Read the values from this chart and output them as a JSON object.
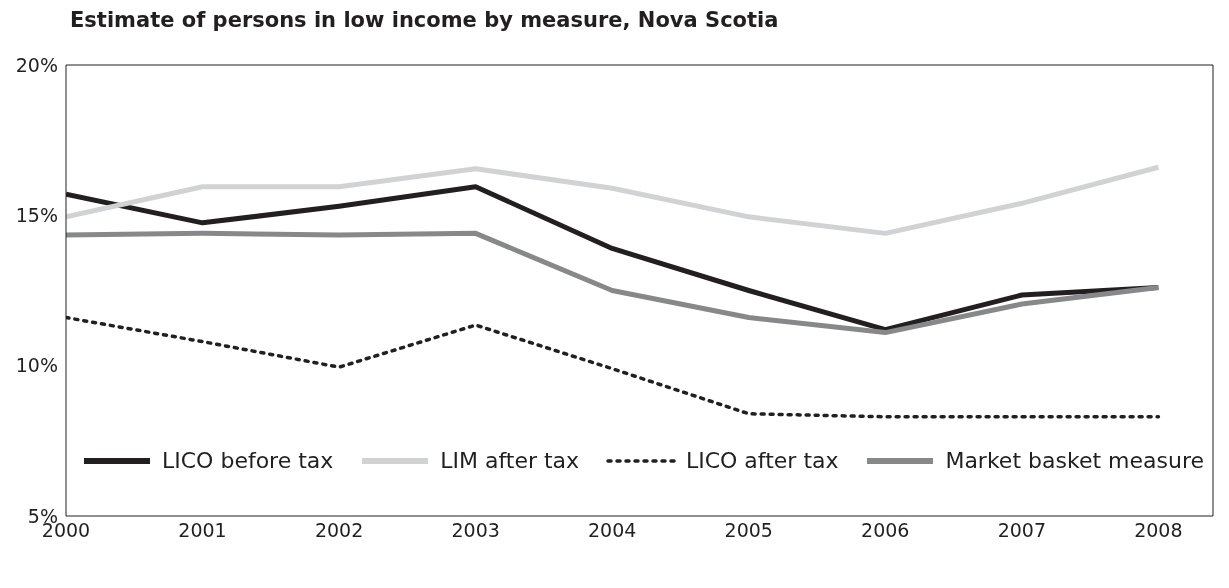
{
  "chart_data": {
    "type": "line",
    "title": "Estimate of persons in low income by measure, Nova Scotia",
    "x": [
      2000,
      2001,
      2002,
      2003,
      2004,
      2005,
      2006,
      2007,
      2008
    ],
    "xlim": [
      2000,
      2008.4
    ],
    "xticks": [
      2000,
      2001,
      2002,
      2003,
      2004,
      2005,
      2006,
      2007,
      2008
    ],
    "ylim": [
      5,
      20
    ],
    "yticks": [
      {
        "value": 5,
        "label": "5%"
      },
      {
        "value": 10,
        "label": "10%"
      },
      {
        "value": 15,
        "label": "15%"
      },
      {
        "value": 20,
        "label": "20%"
      }
    ],
    "grid": false,
    "legend": "bottom",
    "marker": "none",
    "series": [
      {
        "name": "LICO before tax",
        "color": "#231f20",
        "line_style": "solid",
        "values": [
          15.7,
          14.75,
          15.3,
          15.95,
          13.9,
          12.5,
          11.2,
          12.35,
          12.6
        ]
      },
      {
        "name": "LIM after tax",
        "color": "#d1d2d4",
        "line_style": "solid",
        "values": [
          14.95,
          15.95,
          15.95,
          16.55,
          15.9,
          14.95,
          14.4,
          15.4,
          16.6
        ]
      },
      {
        "name": "LICO after tax",
        "color": "#231f20",
        "line_style": "dotted",
        "values": [
          11.6,
          10.8,
          9.95,
          11.35,
          9.9,
          8.4,
          8.3,
          8.3,
          8.3
        ]
      },
      {
        "name": "Market basket measure",
        "color": "#87888a",
        "line_style": "solid",
        "values": [
          14.35,
          14.4,
          14.35,
          14.4,
          12.5,
          11.6,
          11.1,
          12.05,
          12.6
        ]
      }
    ]
  }
}
